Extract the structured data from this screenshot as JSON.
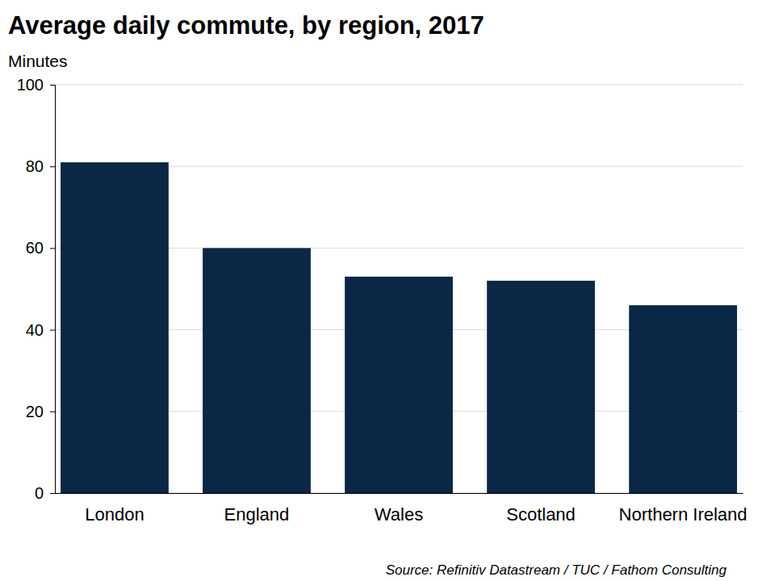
{
  "chart_data": {
    "type": "bar",
    "title": "Average daily commute, by region, 2017",
    "ylabel": "Minutes",
    "source": "Source: Refinitiv Datastream / TUC / Fathom Consulting",
    "categories": [
      "London",
      "England",
      "Wales",
      "Scotland",
      "Northern Ireland"
    ],
    "values": [
      81,
      60,
      53,
      52,
      46
    ],
    "color": "#0a2846",
    "ylim": [
      0,
      100
    ],
    "yticks": [
      0,
      20,
      40,
      60,
      80,
      100
    ],
    "grid": true
  }
}
